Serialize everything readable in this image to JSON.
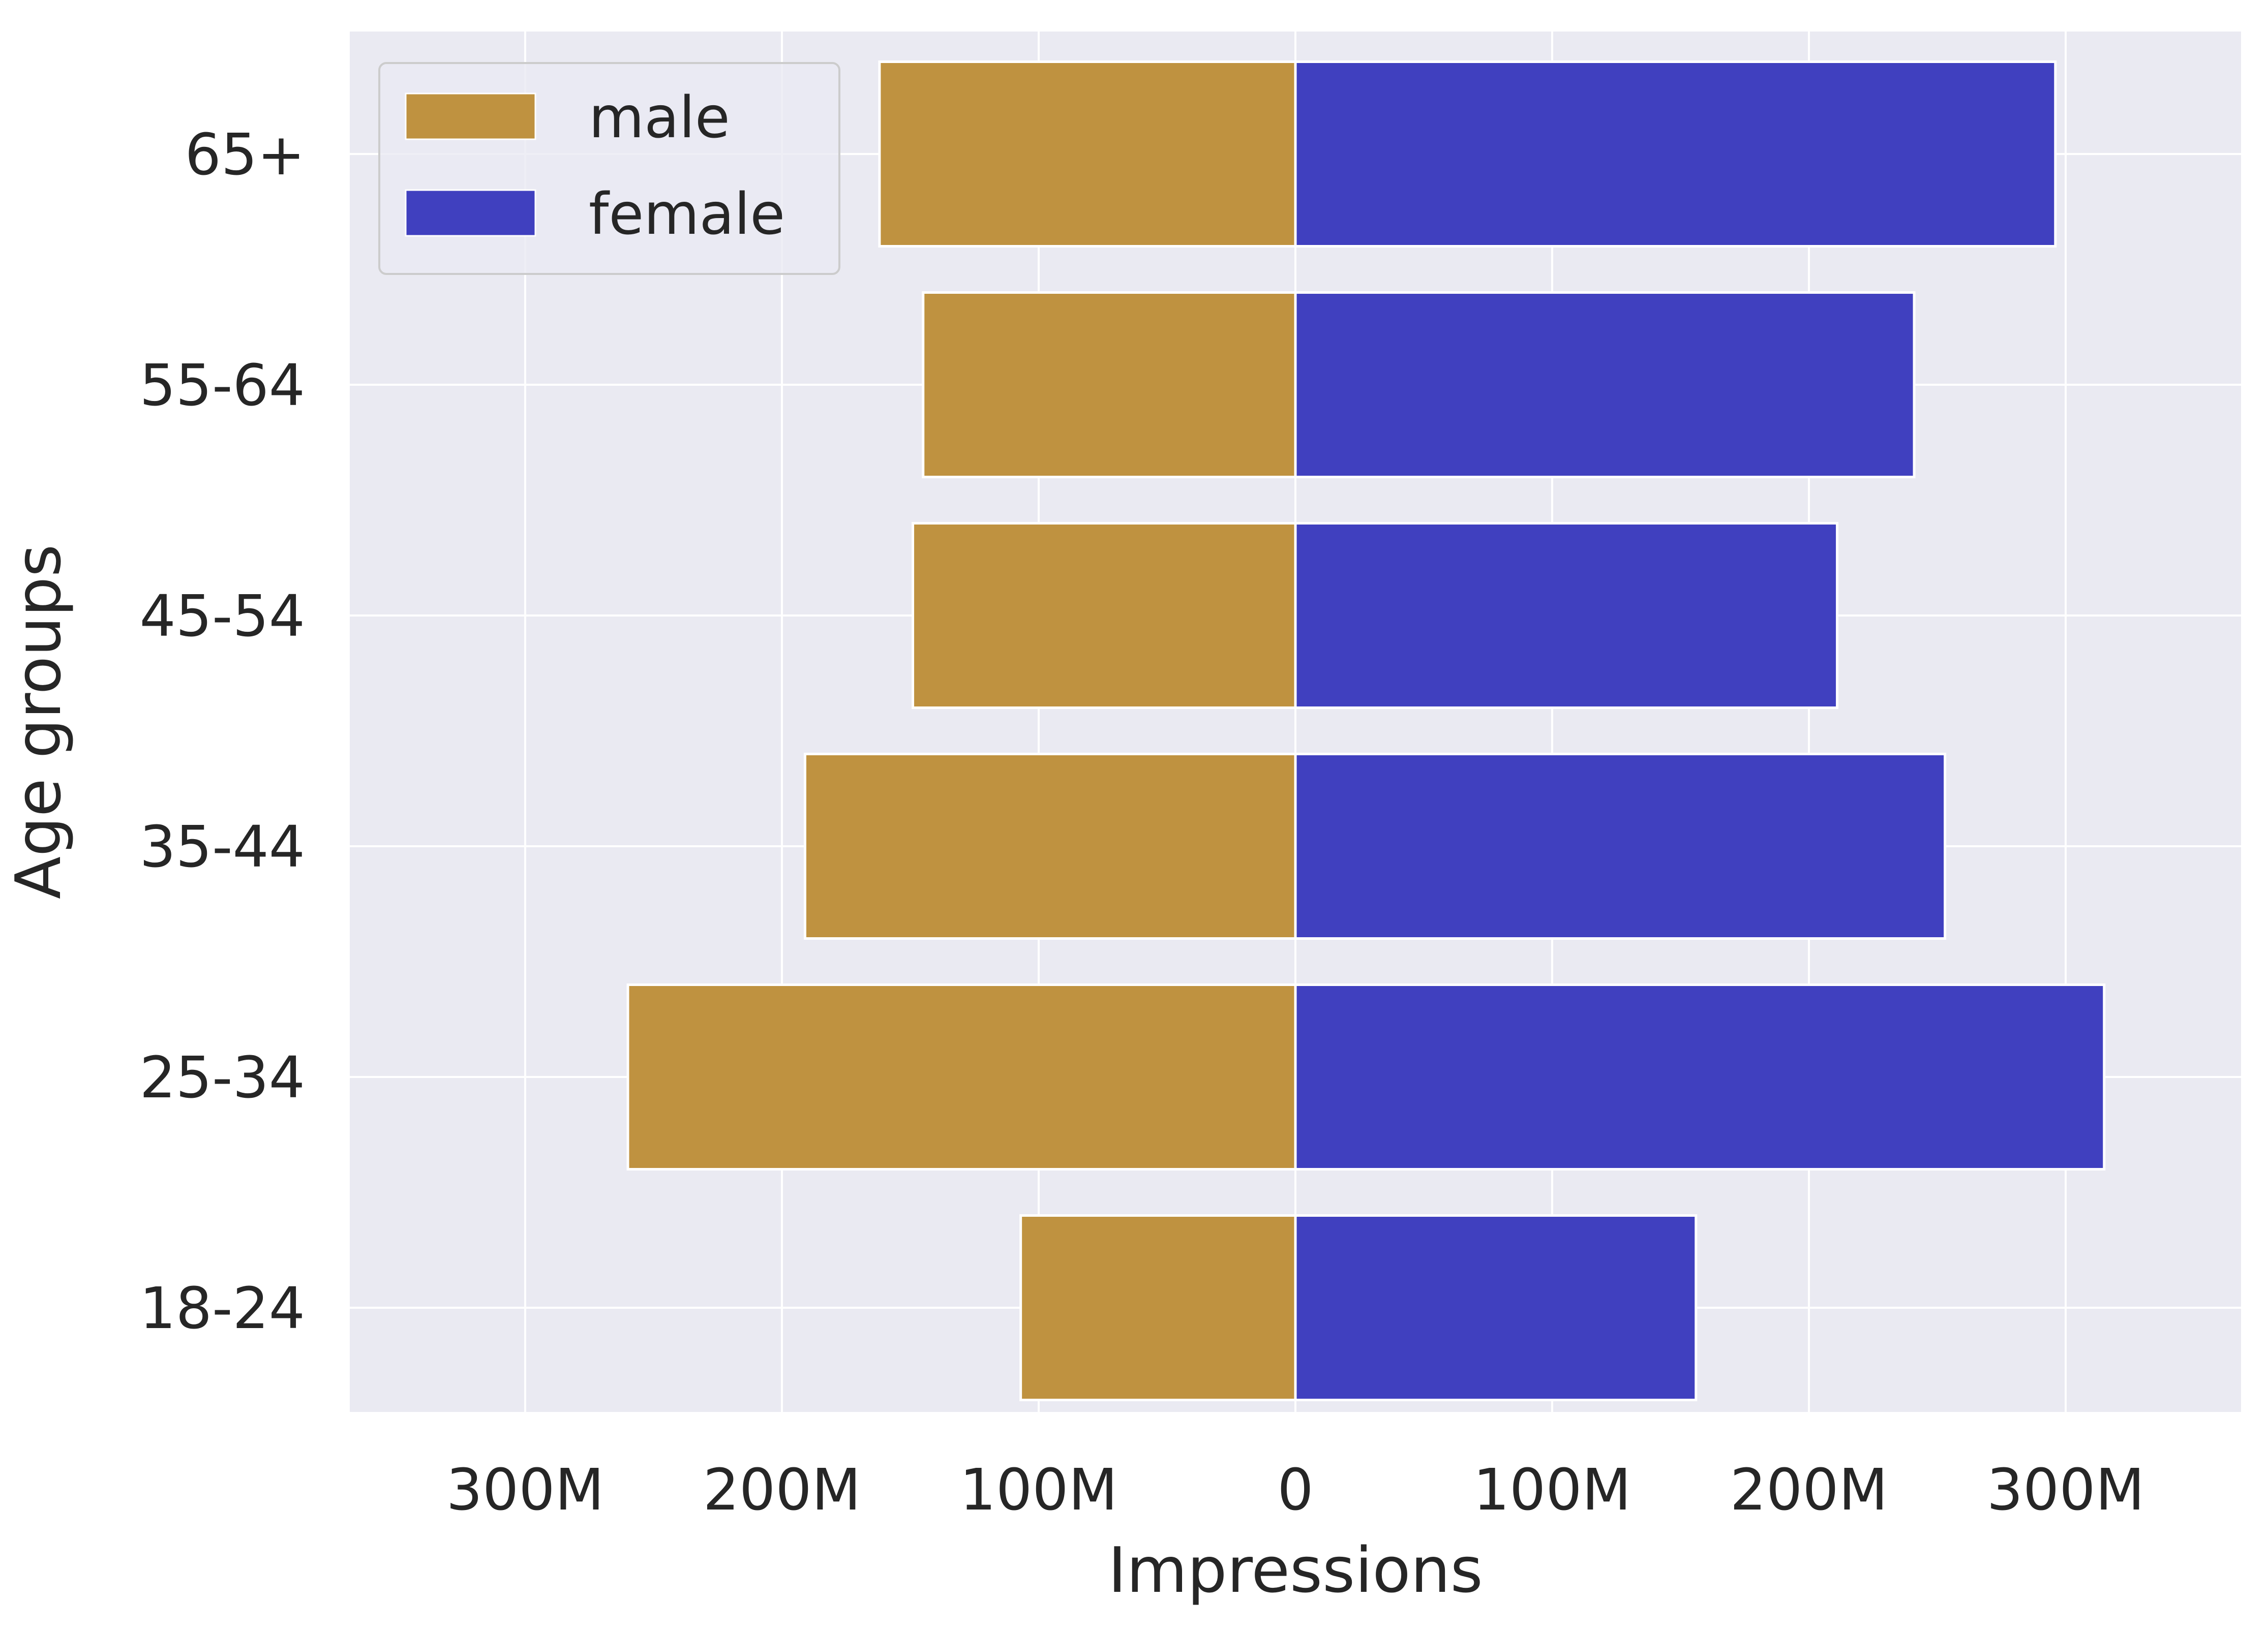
{
  "chart_data": {
    "type": "bar",
    "orientation": "horizontal",
    "layout": "diverging",
    "categories": [
      "65+",
      "55-64",
      "45-54",
      "35-44",
      "25-34",
      "18-24"
    ],
    "series": [
      {
        "name": "male",
        "values": [
          -162,
          -145,
          -149,
          -191,
          -260,
          -107
        ],
        "color": "#bf9240"
      },
      {
        "name": "female",
        "values": [
          296,
          241,
          211,
          253,
          315,
          156
        ],
        "color": "#4040bf"
      }
    ],
    "xlabel": "Impressions",
    "ylabel": "Age groups",
    "xlim": [
      -370,
      370
    ],
    "xticks": [
      -300,
      -200,
      -100,
      0,
      100,
      200,
      300
    ],
    "xtick_labels": [
      "300M",
      "200M",
      "100M",
      "0",
      "100M",
      "200M",
      "300M"
    ],
    "value_unit": "M",
    "grid": true,
    "legend_position": "top-left",
    "background": "#eaeaf2"
  }
}
